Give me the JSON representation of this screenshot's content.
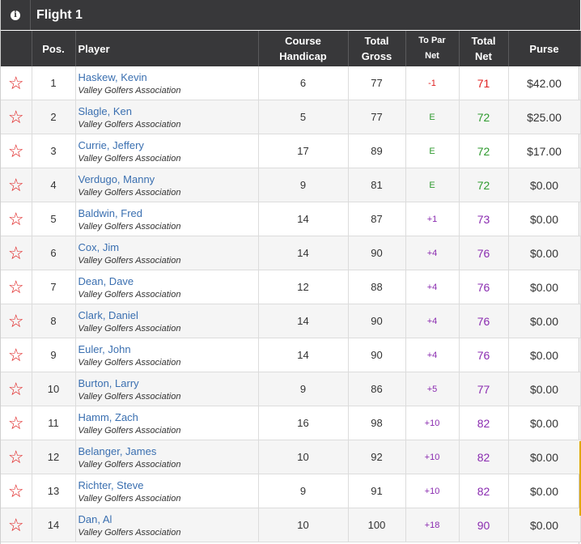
{
  "flight": {
    "title": "Flight 1",
    "info_icon": "info-icon"
  },
  "headers": {
    "pos": "Pos.",
    "player": "Player",
    "handicap_1": "Course",
    "handicap_2": "Handicap",
    "gross_1": "Total",
    "gross_2": "Gross",
    "topar_1": "To Par",
    "topar_2": "Net",
    "net_1": "Total",
    "net_2": "Net",
    "purse": "Purse"
  },
  "colors": {
    "header_bg": "#38383a",
    "star": "#e02020",
    "under_par": "#e02020",
    "even_par": "#2e9a2e",
    "over_par": "#8a2bb0",
    "link": "#3a6fb0"
  },
  "rows": [
    {
      "pos": "1",
      "name": "Haskew, Kevin",
      "club": "Valley Golfers Association",
      "handicap": "6",
      "gross": "77",
      "topar": "-1",
      "net": "71",
      "purse": "$42.00",
      "status": "neg"
    },
    {
      "pos": "2",
      "name": "Slagle, Ken",
      "club": "Valley Golfers Association",
      "handicap": "5",
      "gross": "77",
      "topar": "E",
      "net": "72",
      "purse": "$25.00",
      "status": "even"
    },
    {
      "pos": "3",
      "name": "Currie, Jeffery",
      "club": "Valley Golfers Association",
      "handicap": "17",
      "gross": "89",
      "topar": "E",
      "net": "72",
      "purse": "$17.00",
      "status": "even"
    },
    {
      "pos": "4",
      "name": "Verdugo, Manny",
      "club": "Valley Golfers Association",
      "handicap": "9",
      "gross": "81",
      "topar": "E",
      "net": "72",
      "purse": "$0.00",
      "status": "even"
    },
    {
      "pos": "5",
      "name": "Baldwin, Fred",
      "club": "Valley Golfers Association",
      "handicap": "14",
      "gross": "87",
      "topar": "+1",
      "net": "73",
      "purse": "$0.00",
      "status": "pos"
    },
    {
      "pos": "6",
      "name": "Cox, Jim",
      "club": "Valley Golfers Association",
      "handicap": "14",
      "gross": "90",
      "topar": "+4",
      "net": "76",
      "purse": "$0.00",
      "status": "pos"
    },
    {
      "pos": "7",
      "name": "Dean, Dave",
      "club": "Valley Golfers Association",
      "handicap": "12",
      "gross": "88",
      "topar": "+4",
      "net": "76",
      "purse": "$0.00",
      "status": "pos"
    },
    {
      "pos": "8",
      "name": "Clark, Daniel",
      "club": "Valley Golfers Association",
      "handicap": "14",
      "gross": "90",
      "topar": "+4",
      "net": "76",
      "purse": "$0.00",
      "status": "pos"
    },
    {
      "pos": "9",
      "name": "Euler, John",
      "club": "Valley Golfers Association",
      "handicap": "14",
      "gross": "90",
      "topar": "+4",
      "net": "76",
      "purse": "$0.00",
      "status": "pos"
    },
    {
      "pos": "10",
      "name": "Burton, Larry",
      "club": "Valley Golfers Association",
      "handicap": "9",
      "gross": "86",
      "topar": "+5",
      "net": "77",
      "purse": "$0.00",
      "status": "pos"
    },
    {
      "pos": "11",
      "name": "Hamm, Zach",
      "club": "Valley Golfers Association",
      "handicap": "16",
      "gross": "98",
      "topar": "+10",
      "net": "82",
      "purse": "$0.00",
      "status": "pos"
    },
    {
      "pos": "12",
      "name": "Belanger, James",
      "club": "Valley Golfers Association",
      "handicap": "10",
      "gross": "92",
      "topar": "+10",
      "net": "82",
      "purse": "$0.00",
      "status": "pos"
    },
    {
      "pos": "13",
      "name": "Richter, Steve",
      "club": "Valley Golfers Association",
      "handicap": "9",
      "gross": "91",
      "topar": "+10",
      "net": "82",
      "purse": "$0.00",
      "status": "pos"
    },
    {
      "pos": "14",
      "name": "Dan, Al",
      "club": "Valley Golfers Association",
      "handicap": "10",
      "gross": "100",
      "topar": "+18",
      "net": "90",
      "purse": "$0.00",
      "status": "pos"
    }
  ]
}
